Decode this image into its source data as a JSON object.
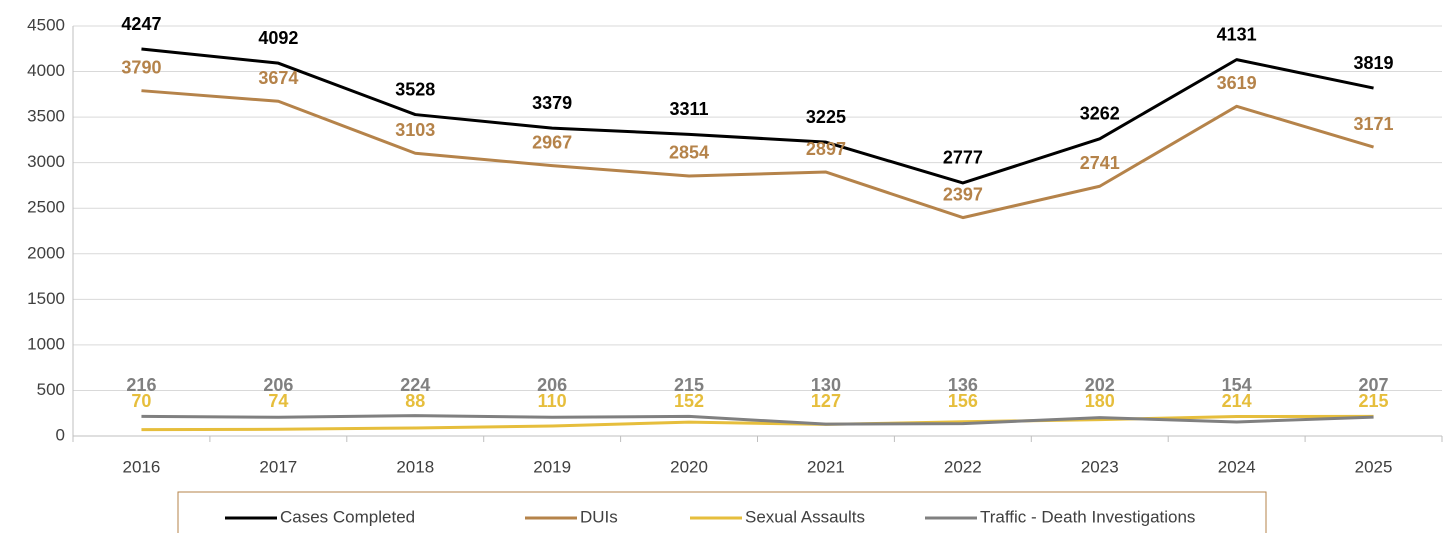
{
  "chart_data": {
    "type": "line",
    "categories": [
      "2016",
      "2017",
      "2018",
      "2019",
      "2020",
      "2021",
      "2022",
      "2023",
      "2024",
      "2025"
    ],
    "series": [
      {
        "name": "Cases Completed",
        "color": "#000000",
        "values": [
          4247,
          4092,
          3528,
          3379,
          3311,
          3225,
          2777,
          3262,
          4131,
          3819
        ]
      },
      {
        "name": "DUIs",
        "color": "#b5834a",
        "values": [
          3790,
          3674,
          3103,
          2967,
          2854,
          2897,
          2397,
          2741,
          3619,
          3171
        ]
      },
      {
        "name": "Sexual Assaults",
        "color": "#e6be3c",
        "values": [
          70,
          74,
          88,
          110,
          152,
          127,
          156,
          180,
          214,
          215
        ]
      },
      {
        "name": "Traffic - Death Investigations",
        "color": "#808080",
        "values": [
          216,
          206,
          224,
          206,
          215,
          130,
          136,
          202,
          154,
          207
        ]
      }
    ],
    "ylim": [
      0,
      4500
    ],
    "yticks": [
      0,
      500,
      1000,
      1500,
      2000,
      2500,
      3000,
      3500,
      4000,
      4500
    ],
    "grid": true,
    "legend": "bottom"
  }
}
